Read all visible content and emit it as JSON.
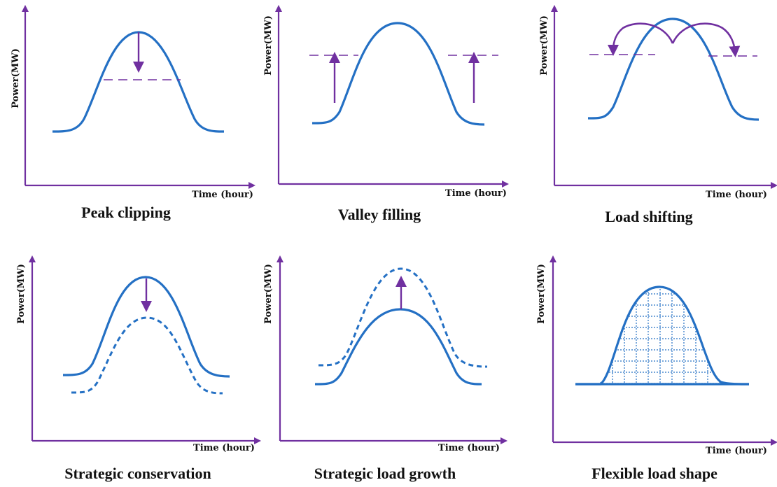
{
  "colors": {
    "axis": "#7030a0",
    "curve": "#2470c4",
    "arrow": "#7030a0",
    "text": "#111111"
  },
  "panels": [
    {
      "id": "peak-clipping",
      "ylabel": "Power(MW)",
      "xlabel": "Time (hour)",
      "caption": "Peak clipping"
    },
    {
      "id": "valley-filling",
      "ylabel": "Power(MW)",
      "xlabel": "Time (hour)",
      "caption": "Valley filling"
    },
    {
      "id": "load-shifting",
      "ylabel": "Power(MW)",
      "xlabel": "Time (hour)",
      "caption": "Load shifting"
    },
    {
      "id": "strategic-conservation",
      "ylabel": "Power(MW)",
      "xlabel": "Time (hour)",
      "caption": "Strategic conservation"
    },
    {
      "id": "strategic-load-growth",
      "ylabel": "Power(MW)",
      "xlabel": "Time (hour)",
      "caption": "Strategic load growth"
    },
    {
      "id": "flexible-load-shape",
      "ylabel": "Power(MW)",
      "xlabel": "Time (hour)",
      "caption": "Flexible load shape"
    }
  ]
}
